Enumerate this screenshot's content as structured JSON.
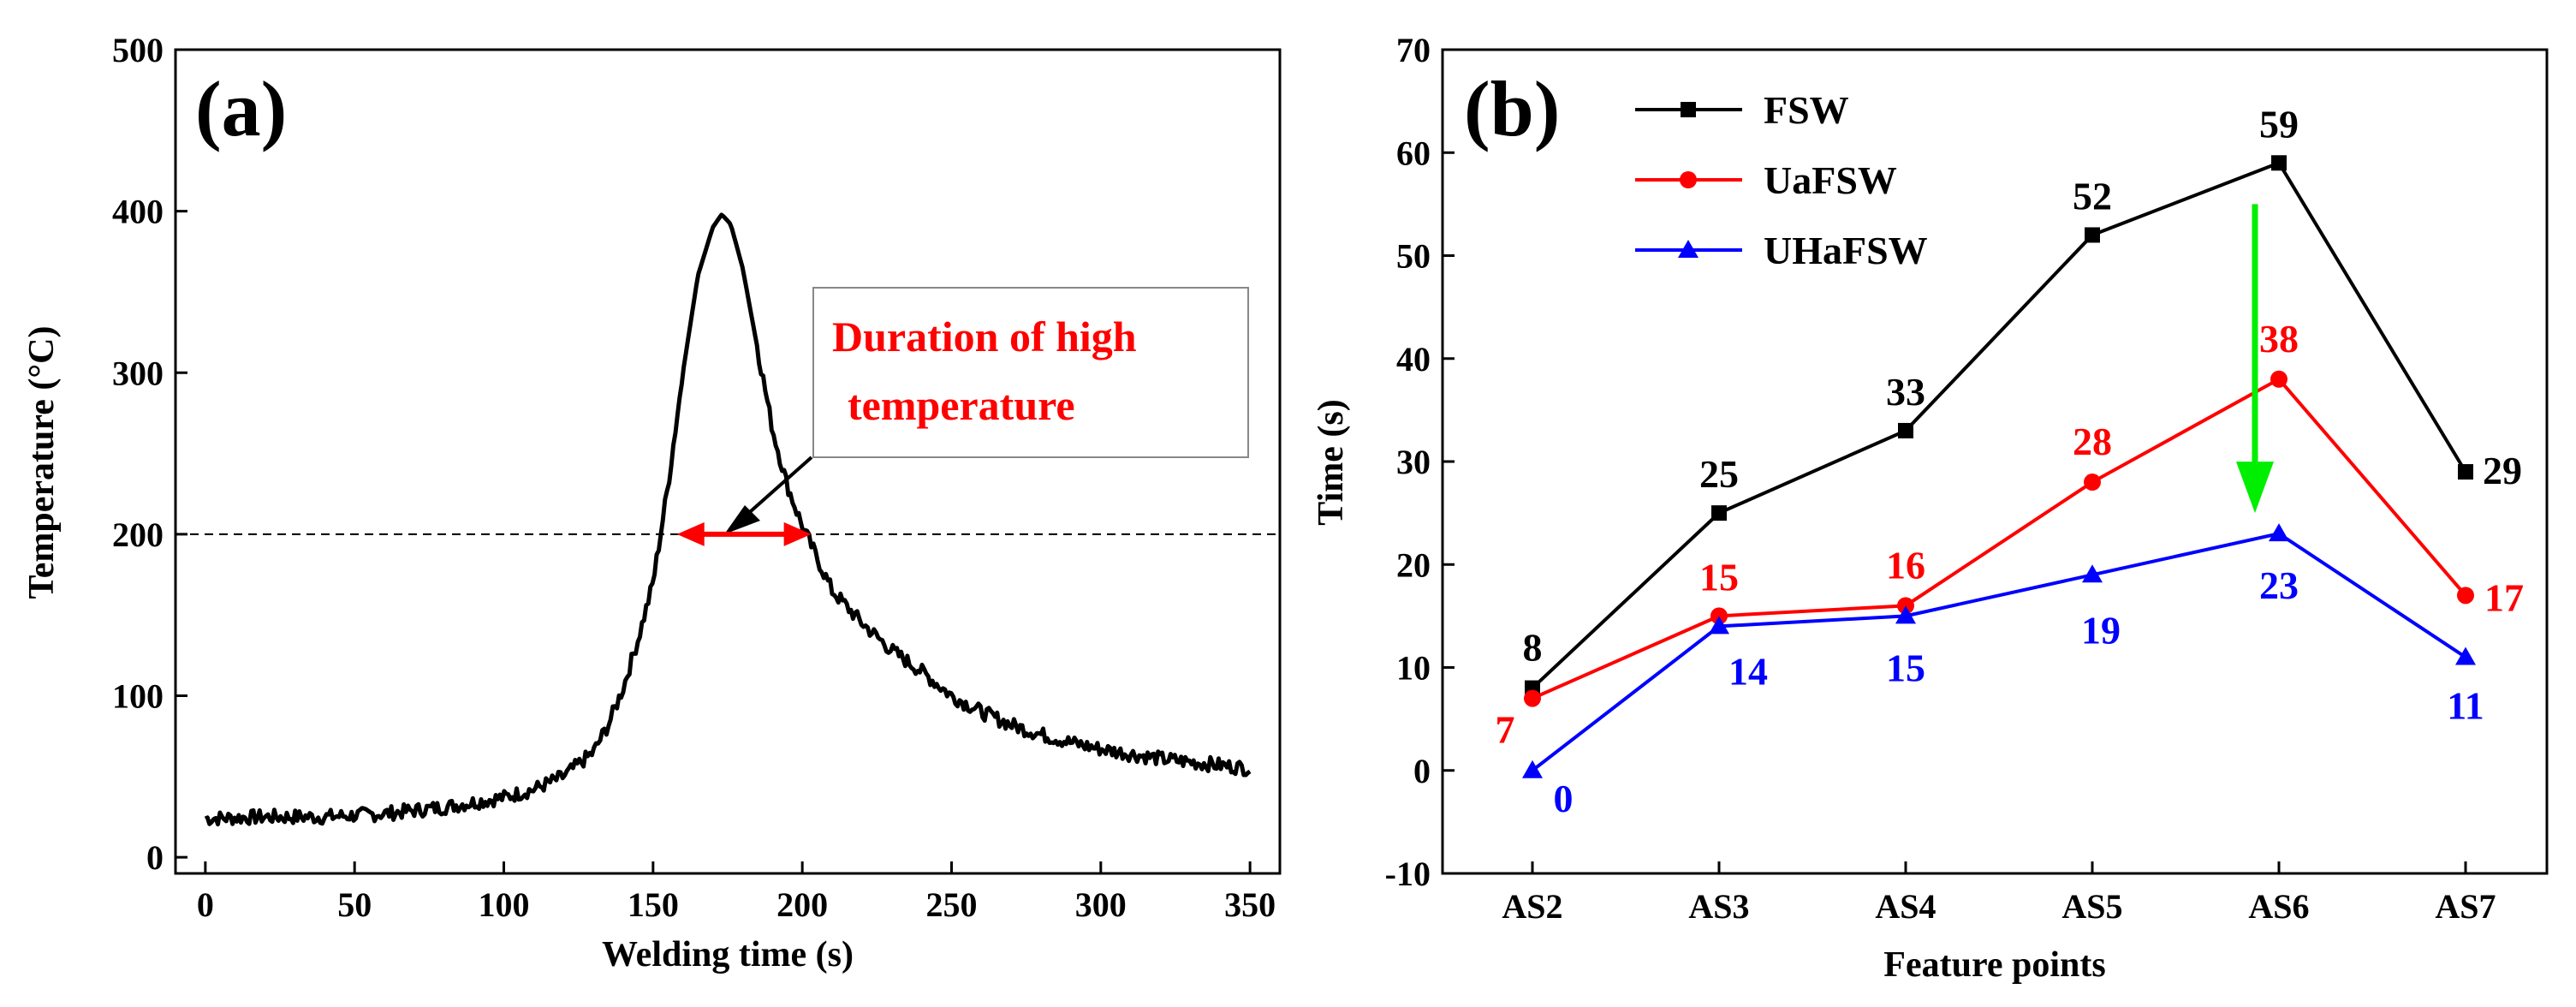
{
  "chart_data": [
    {
      "type": "line",
      "panel_label": "(a)",
      "xlabel": "Welding time (s)",
      "ylabel": "Temperature (°C)",
      "xlim": [
        -10,
        360
      ],
      "ylim": [
        -10,
        500
      ],
      "xticks": [
        0,
        50,
        100,
        150,
        200,
        250,
        300,
        350
      ],
      "yticks": [
        0,
        100,
        200,
        300,
        400,
        500
      ],
      "series": [
        {
          "name": "Temperature",
          "x": [
            0,
            20,
            40,
            60,
            80,
            100,
            110,
            120,
            130,
            135,
            140,
            145,
            150,
            155,
            160,
            165,
            170,
            173,
            176,
            180,
            185,
            190,
            195,
            200,
            210,
            220,
            230,
            240,
            250,
            260,
            270,
            280,
            290,
            300,
            310,
            320,
            330,
            340,
            350
          ],
          "y": [
            24,
            25,
            25,
            27,
            31,
            37,
            42,
            50,
            65,
            82,
            105,
            135,
            170,
            230,
            300,
            360,
            390,
            398,
            392,
            365,
            315,
            265,
            230,
            205,
            165,
            145,
            128,
            115,
            100,
            90,
            82,
            76,
            71,
            67,
            64,
            61,
            59,
            57,
            55
          ]
        }
      ],
      "reference_line": {
        "y": 200,
        "style": "dashed"
      },
      "annotation": {
        "text_line1": "Duration of  high",
        "text_line2": "temperature",
        "span_x": [
          158,
          203
        ],
        "span_y": 200
      }
    },
    {
      "type": "line",
      "panel_label": "(b)",
      "xlabel": "Feature points",
      "ylabel": "Time (s)",
      "categories": [
        "AS2",
        "AS3",
        "AS4",
        "AS5",
        "AS6",
        "AS7"
      ],
      "ylim": [
        -10,
        70
      ],
      "yticks": [
        -10,
        0,
        10,
        20,
        30,
        40,
        50,
        60,
        70
      ],
      "legend_position": "top-left",
      "series": [
        {
          "name": "FSW",
          "values": [
            8,
            25,
            33,
            52,
            59,
            29
          ],
          "color": "#000000",
          "marker": "square",
          "labels": [
            "8",
            "25",
            "33",
            "52",
            "59",
            "29"
          ]
        },
        {
          "name": "UaFSW",
          "values": [
            7,
            15,
            16,
            28,
            38,
            17
          ],
          "color": "#ff0000",
          "marker": "circle",
          "labels": [
            "7",
            "15",
            "16",
            "28",
            "38",
            "17"
          ]
        },
        {
          "name": "UHaFSW",
          "values": [
            0,
            14,
            15,
            19,
            23,
            11
          ],
          "color": "#0000ff",
          "marker": "triangle",
          "labels": [
            "0",
            "14",
            "15",
            "19",
            "23",
            "11"
          ]
        }
      ],
      "arrow": {
        "category": "AS6",
        "from_y": 55,
        "to_y": 25,
        "color": "#00ee00"
      }
    }
  ]
}
